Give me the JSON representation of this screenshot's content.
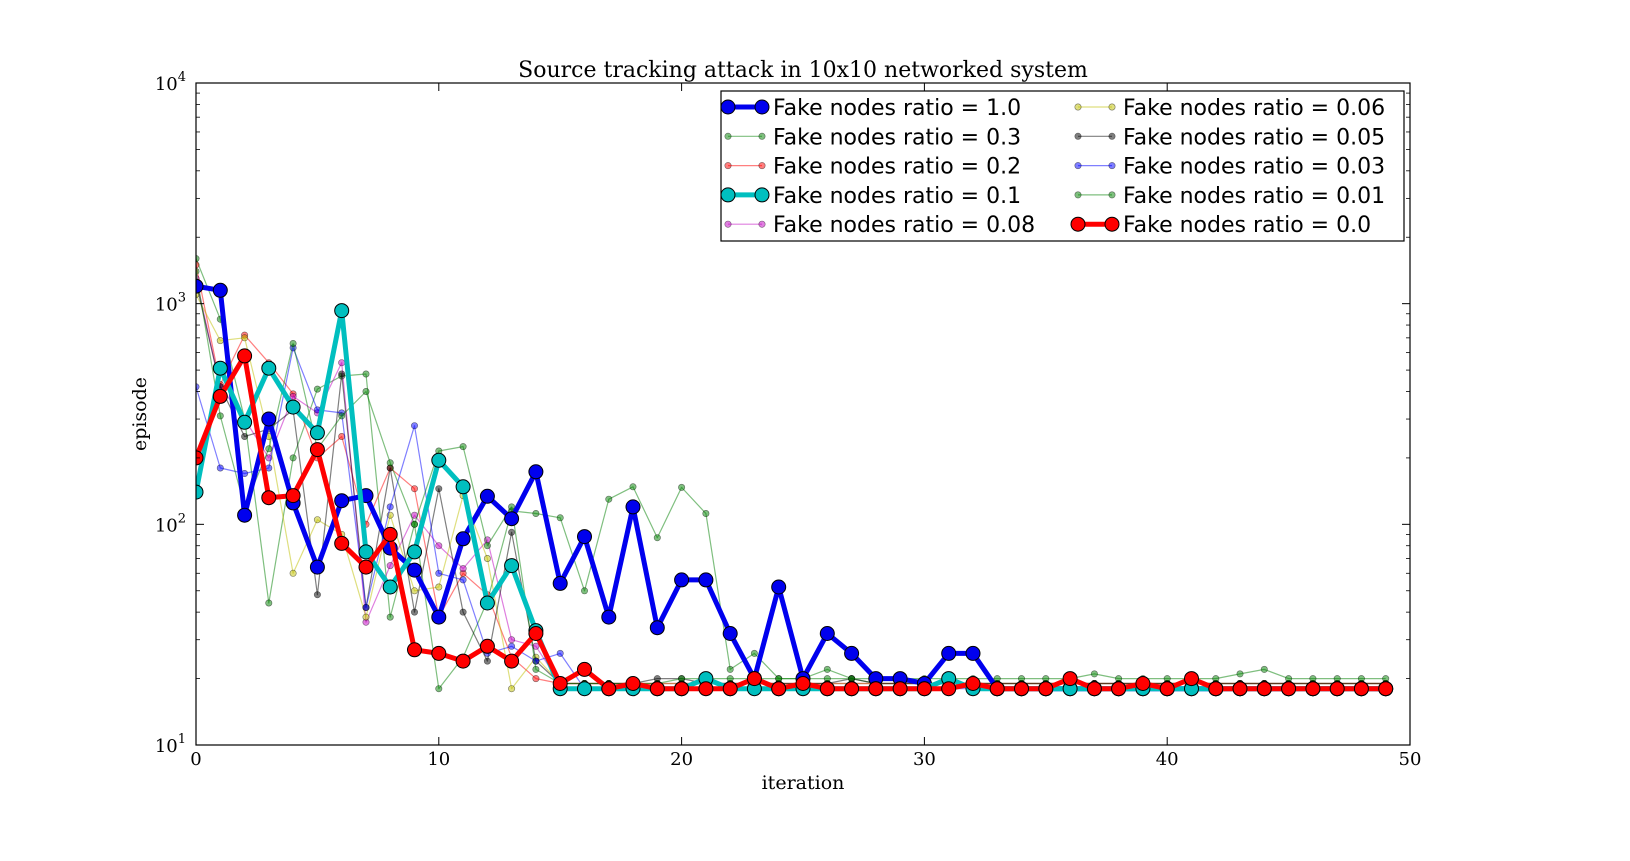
{
  "chart_data": {
    "type": "line",
    "title": "Source tracking attack in 10x10 networked system",
    "xlabel": "iteration",
    "ylabel": "episode",
    "xlim": [
      0,
      50
    ],
    "ylim": [
      10,
      10000
    ],
    "yscale": "log",
    "grid": false,
    "legend_placement": "top-right",
    "x_ticks": [
      "0",
      "10",
      "20",
      "30",
      "40",
      "50"
    ],
    "y_ticks": [
      {
        "base": "10",
        "exp": "1"
      },
      {
        "base": "10",
        "exp": "2"
      },
      {
        "base": "10",
        "exp": "3"
      },
      {
        "base": "10",
        "exp": "4"
      }
    ],
    "x": [
      0,
      1,
      2,
      3,
      4,
      5,
      6,
      7,
      8,
      9,
      10,
      11,
      12,
      13,
      14,
      15,
      16,
      17,
      18,
      19,
      20,
      21,
      22,
      23,
      24,
      25,
      26,
      27,
      28,
      29,
      30,
      31,
      32,
      33,
      34,
      35,
      36,
      37,
      38,
      39,
      40,
      41,
      42,
      43,
      44,
      45,
      46,
      47,
      48,
      49
    ],
    "series": [
      {
        "name": "Fake nodes ratio = 1.0",
        "color": "#0000ee",
        "style": "bold",
        "values": [
          1200,
          1150,
          110,
          300,
          125,
          64,
          128,
          135,
          78,
          62,
          38,
          86,
          134,
          106,
          173,
          54,
          88,
          38,
          120,
          34,
          56,
          56,
          32,
          20,
          52,
          20,
          32,
          26,
          20,
          20,
          19,
          26,
          26,
          18,
          18,
          18,
          18,
          18,
          18,
          18,
          18,
          18,
          18,
          18,
          18,
          18,
          18,
          18,
          18,
          18
        ]
      },
      {
        "name": "Fake nodes ratio = 0.3",
        "color": "#008000",
        "style": "thin",
        "values": [
          1600,
          850,
          300,
          44,
          200,
          410,
          470,
          480,
          38,
          100,
          18,
          25,
          45,
          115,
          112,
          107,
          50,
          130,
          148,
          87,
          147,
          112,
          22,
          26,
          20,
          20,
          22,
          20,
          19,
          19,
          19,
          19,
          19,
          19,
          19,
          19,
          19,
          19,
          19,
          19,
          19,
          19,
          19,
          19,
          19,
          19,
          19,
          19,
          19,
          19
        ]
      },
      {
        "name": "Fake nodes ratio = 0.2",
        "color": "#ff0000",
        "style": "thin",
        "values": [
          1500,
          430,
          720,
          540,
          390,
          200,
          250,
          100,
          180,
          145,
          38,
          60,
          48,
          25,
          20,
          19,
          19,
          19,
          19,
          19,
          19,
          19,
          19,
          19,
          19,
          19,
          19,
          19,
          19,
          19,
          19,
          19,
          19,
          19,
          19,
          19,
          19,
          19,
          19,
          19,
          19,
          19,
          19,
          19,
          19,
          19,
          19,
          19,
          19,
          19
        ]
      },
      {
        "name": "Fake nodes ratio = 0.1",
        "color": "#00bfbf",
        "style": "bold",
        "values": [
          140,
          510,
          290,
          510,
          340,
          260,
          930,
          75,
          52,
          75,
          195,
          148,
          44,
          65,
          33,
          18,
          18,
          18,
          18,
          18,
          18,
          20,
          18,
          18,
          18,
          18,
          18,
          18,
          18,
          18,
          18,
          20,
          18,
          18,
          18,
          18,
          18,
          18,
          18,
          18,
          18,
          18,
          18,
          18,
          18,
          18,
          18,
          18,
          18,
          18
        ]
      },
      {
        "name": "Fake nodes ratio = 0.08",
        "color": "#bf00bf",
        "style": "thin",
        "values": [
          1300,
          420,
          300,
          200,
          380,
          320,
          540,
          36,
          65,
          110,
          80,
          63,
          85,
          30,
          28,
          19,
          19,
          19,
          19,
          19,
          19,
          19,
          19,
          19,
          19,
          19,
          19,
          19,
          19,
          19,
          19,
          19,
          19,
          19,
          19,
          19,
          19,
          19,
          19,
          19,
          19,
          19,
          19,
          19,
          19,
          19,
          19,
          19,
          19,
          19
        ]
      },
      {
        "name": "Fake nodes ratio = 0.06",
        "color": "#bfbf00",
        "style": "thin",
        "values": [
          1100,
          680,
          700,
          250,
          60,
          105,
          90,
          38,
          110,
          50,
          52,
          135,
          70,
          18,
          25,
          19,
          19,
          19,
          19,
          19,
          19,
          19,
          19,
          19,
          19,
          19,
          19,
          19,
          19,
          19,
          19,
          19,
          19,
          19,
          19,
          19,
          19,
          19,
          19,
          19,
          19,
          19,
          19,
          19,
          19,
          19,
          19,
          19,
          19,
          19
        ]
      },
      {
        "name": "Fake nodes ratio = 0.05",
        "color": "#000000",
        "style": "thin",
        "values": [
          1250,
          420,
          250,
          270,
          330,
          48,
          480,
          42,
          180,
          40,
          145,
          40,
          24,
          92,
          24,
          19,
          19,
          19,
          19,
          20,
          20,
          19,
          19,
          19,
          19,
          19,
          19,
          20,
          19,
          19,
          19,
          19,
          19,
          19,
          19,
          19,
          19,
          19,
          19,
          19,
          19,
          19,
          19,
          19,
          19,
          19,
          19,
          19,
          19,
          19
        ]
      },
      {
        "name": "Fake nodes ratio = 0.03",
        "color": "#0000ff",
        "style": "thin",
        "values": [
          420,
          180,
          170,
          180,
          630,
          330,
          320,
          42,
          120,
          280,
          60,
          56,
          26,
          28,
          24,
          26,
          18,
          18,
          18,
          18,
          18,
          20,
          18,
          18,
          18,
          18,
          18,
          18,
          18,
          18,
          18,
          18,
          18,
          18,
          18,
          18,
          18,
          18,
          18,
          18,
          18,
          18,
          18,
          18,
          18,
          18,
          18,
          18,
          18,
          18
        ]
      },
      {
        "name": "Fake nodes ratio = 0.01",
        "color": "#008000",
        "style": "thin",
        "values": [
          1400,
          310,
          120,
          220,
          660,
          220,
          310,
          400,
          190,
          100,
          215,
          225,
          80,
          120,
          22,
          19,
          19,
          19,
          19,
          19,
          20,
          20,
          20,
          20,
          20,
          20,
          20,
          20,
          20,
          20,
          20,
          20,
          20,
          20,
          20,
          20,
          20,
          21,
          20,
          20,
          20,
          20,
          20,
          21,
          22,
          20,
          20,
          20,
          20,
          20
        ]
      },
      {
        "name": "Fake nodes ratio = 0.0",
        "color": "#ff0000",
        "style": "bold",
        "values": [
          200,
          380,
          580,
          132,
          135,
          218,
          82,
          64,
          90,
          27,
          26,
          24,
          28,
          24,
          32,
          19,
          22,
          18,
          19,
          18,
          18,
          18,
          18,
          20,
          18,
          19,
          18,
          18,
          18,
          18,
          18,
          18,
          19,
          18,
          18,
          18,
          20,
          18,
          18,
          19,
          18,
          20,
          18,
          18,
          18,
          18,
          18,
          18,
          18,
          18
        ]
      }
    ]
  }
}
